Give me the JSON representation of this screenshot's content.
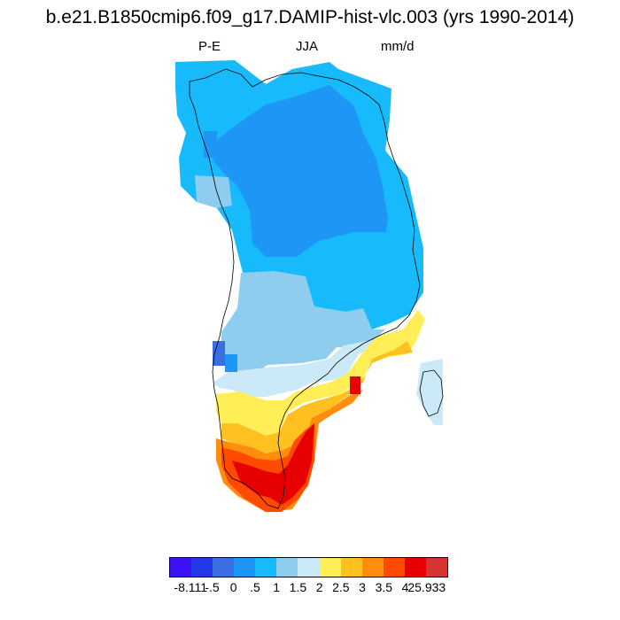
{
  "title": "b.e21.B1850cmip6.f09_g17.DAMIP-hist-vlc.003 (yrs 1990-2014)",
  "subtitle": {
    "left": "P-E",
    "center": "JJA",
    "right": "mm/d"
  },
  "colorbar": {
    "colors": [
      "#3c12f5",
      "#2338e6",
      "#3a6fe0",
      "#1e96f5",
      "#17bbfb",
      "#8fcdee",
      "#cbe9f7",
      "#ffee55",
      "#ffc11f",
      "#ff8e0f",
      "#ff4a00",
      "#e60000",
      "#d63333"
    ],
    "tick_labels": [
      "-8.111",
      "-.5",
      "0",
      ".5",
      "1",
      "1.5",
      "2",
      "2.5",
      "3",
      "3.5",
      "4",
      "25.933"
    ]
  },
  "map": {
    "region": "Greenland",
    "variable": "P-E",
    "season": "JJA",
    "units": "mm/d"
  }
}
